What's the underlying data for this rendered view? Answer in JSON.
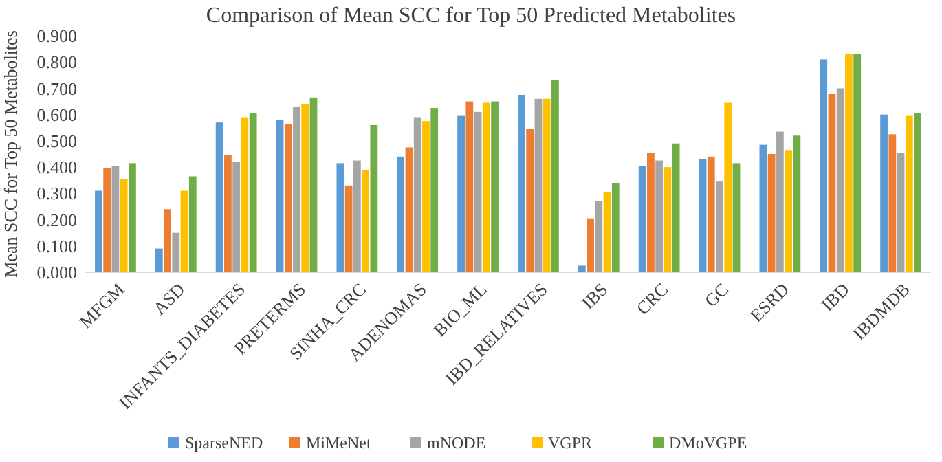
{
  "chart_data": {
    "type": "bar",
    "title": "Comparison of Mean SCC for Top 50 Predicted Metabolites",
    "ylabel": "Mean SCC for Top 50 Metabolites",
    "categories": [
      "MFGM",
      "ASD",
      "INFANTS_DIABETES",
      "PRETERMS",
      "SINHA_CRC",
      "ADENOMAS",
      "BIO_ML",
      "IBD_RELATIVES",
      "IBS",
      "CRC",
      "GC",
      "ESRD",
      "IBD",
      "IBDMDB"
    ],
    "series": [
      {
        "name": "SparseNED",
        "color": "#5b9bd5",
        "values": [
          0.31,
          0.09,
          0.57,
          0.58,
          0.415,
          0.44,
          0.595,
          0.675,
          0.025,
          0.405,
          0.43,
          0.485,
          0.81,
          0.6
        ]
      },
      {
        "name": "MiMeNet",
        "color": "#ed7d31",
        "values": [
          0.395,
          0.24,
          0.445,
          0.565,
          0.33,
          0.475,
          0.65,
          0.545,
          0.205,
          0.455,
          0.44,
          0.45,
          0.68,
          0.525
        ]
      },
      {
        "name": "mNODE",
        "color": "#a5a5a5",
        "values": [
          0.405,
          0.15,
          0.42,
          0.63,
          0.425,
          0.59,
          0.61,
          0.66,
          0.27,
          0.425,
          0.345,
          0.535,
          0.7,
          0.455
        ]
      },
      {
        "name": "VGPR",
        "color": "#ffc000",
        "values": [
          0.355,
          0.31,
          0.59,
          0.64,
          0.39,
          0.575,
          0.645,
          0.66,
          0.305,
          0.4,
          0.645,
          0.465,
          0.83,
          0.595
        ]
      },
      {
        "name": "DMoVGPE",
        "color": "#70ad47",
        "values": [
          0.415,
          0.365,
          0.605,
          0.665,
          0.56,
          0.625,
          0.65,
          0.73,
          0.34,
          0.49,
          0.415,
          0.52,
          0.83,
          0.605
        ]
      }
    ],
    "ylim": [
      0,
      0.9
    ],
    "yticks": [
      {
        "value": 0,
        "label": "0.000"
      },
      {
        "value": 0.1,
        "label": "0.100"
      },
      {
        "value": 0.2,
        "label": "0.200"
      },
      {
        "value": 0.3,
        "label": "0.300"
      },
      {
        "value": 0.4,
        "label": "0.400"
      },
      {
        "value": 0.5,
        "label": "0.500"
      },
      {
        "value": 0.6,
        "label": "0.600"
      },
      {
        "value": 0.7,
        "label": "0.700"
      },
      {
        "value": 0.8,
        "label": "0.800"
      },
      {
        "value": 0.9,
        "label": "0.900"
      }
    ],
    "grid": false,
    "legend": "bottom"
  }
}
